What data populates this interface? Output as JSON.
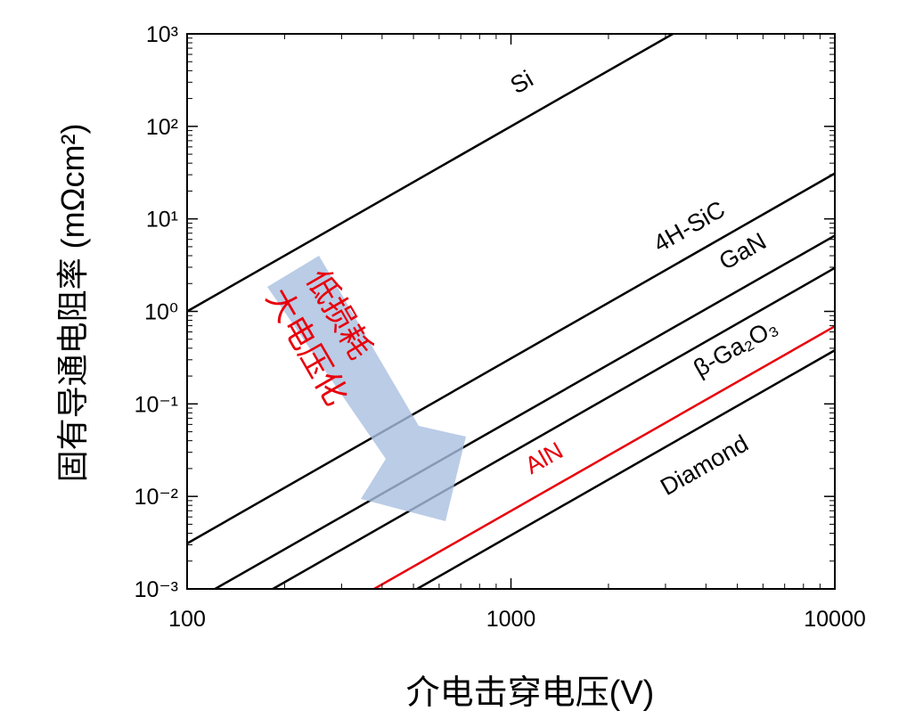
{
  "chart_data": {
    "type": "line",
    "x_label": "介电击穿电压(V)",
    "y_label": "固有导通电阻率  (mΩcm²)",
    "annotations": [
      "低损耗",
      "大电压化"
    ],
    "xscale": "log",
    "yscale": "log",
    "xlim": [
      100,
      10000
    ],
    "xticks": [
      100,
      1000,
      10000
    ],
    "ylim": [
      0.001,
      1000
    ],
    "yticks": [
      {
        "value": 0.001,
        "label": "10⁻³"
      },
      {
        "value": 0.01,
        "label": "10⁻²"
      },
      {
        "value": 0.1,
        "label": "10⁻¹"
      },
      {
        "value": 1,
        "label": "10⁰"
      },
      {
        "value": 10,
        "label": "10¹"
      },
      {
        "value": 100,
        "label": "10²"
      },
      {
        "value": 1000,
        "label": "10³"
      }
    ],
    "series": [
      {
        "name": "Si",
        "color": "#000000",
        "x": [
          100,
          3162
        ],
        "values": [
          1,
          1000
        ]
      },
      {
        "name": "4H-SiC",
        "color": "#000000",
        "x": [
          100,
          10000
        ],
        "values": [
          0.0031,
          31
        ]
      },
      {
        "name": "GaN",
        "color": "#000000",
        "x": [
          122,
          10000
        ],
        "values": [
          0.001,
          6.6
        ]
      },
      {
        "name": "β-Ga₂O₃",
        "color": "#000000",
        "x": [
          184,
          10000
        ],
        "values": [
          0.001,
          2.95
        ]
      },
      {
        "name": "AlN",
        "color": "#e8000b",
        "x": [
          378,
          10000
        ],
        "values": [
          0.001,
          0.69
        ]
      },
      {
        "name": "Diamond",
        "color": "#000000",
        "x": [
          513,
          10000
        ],
        "values": [
          0.001,
          0.38
        ]
      }
    ]
  }
}
